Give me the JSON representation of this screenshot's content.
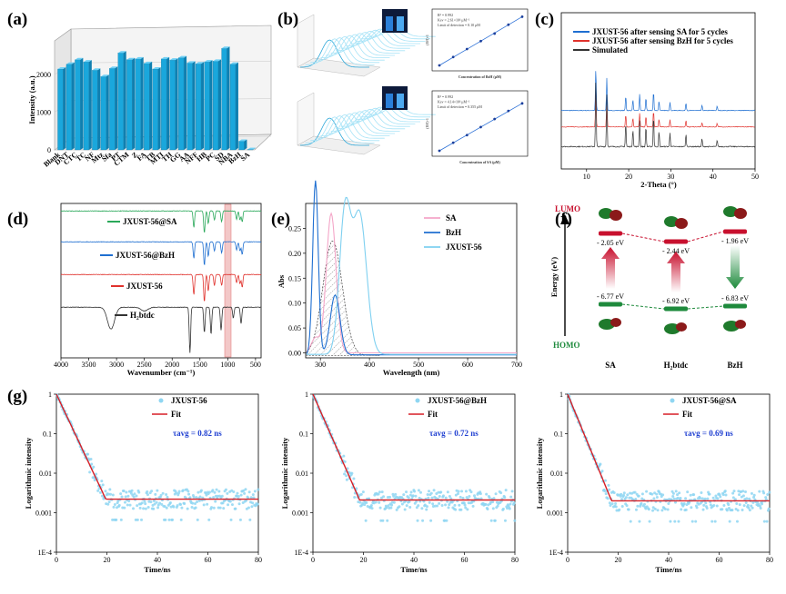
{
  "panels": {
    "a": "(a)",
    "b": "(b)",
    "c": "(c)",
    "d": "(d)",
    "e": "(e)",
    "f": "(f)",
    "g": "(g)"
  },
  "colors": {
    "bar": "#1aa7dc",
    "blue": "#1f6fd1",
    "red": "#e0322d",
    "dark": "#333333",
    "green": "#2aa85a",
    "pink": "#f4a6c8",
    "lightblue": "#7fd0f0",
    "scatter": "#8fd6f2",
    "fit": "#d71f26"
  },
  "chart_data": [
    {
      "id": "a",
      "type": "bar",
      "title": "",
      "ylabel": "Intensity (a.u.)",
      "yticks": [
        "0",
        "1000",
        "2000"
      ],
      "ylim": [
        0,
        2900
      ],
      "categories": [
        "Blank",
        "DNT",
        "CTC",
        "TC",
        "NF",
        "Mtz",
        "Sfa",
        "PT",
        "CTM",
        "Z",
        "FA",
        "TB",
        "MTI",
        "TH",
        "GG",
        "AA",
        "NFF",
        "HB",
        "PC",
        "SD",
        "NBA",
        "BzH",
        "SA"
      ],
      "values": [
        2150,
        2280,
        2400,
        2340,
        2120,
        1950,
        2170,
        2580,
        2400,
        2420,
        2300,
        2150,
        2420,
        2390,
        2450,
        2310,
        2290,
        2340,
        2360,
        2700,
        2280,
        230,
        10
      ]
    },
    {
      "id": "b-top-right",
      "type": "scatter",
      "xlabel": "Concentration of BzH (μM)",
      "ylabel": "(I0/I)-1",
      "annotations": [
        "R² = 0.992",
        "Ksv = 2.61×10⁴ μM⁻¹",
        "Limit of detection = 0.10 μM"
      ],
      "x": [
        0,
        100,
        200,
        300,
        400,
        500,
        600
      ],
      "y": [
        0.0,
        0.19,
        0.37,
        0.55,
        0.72,
        0.92,
        1.1
      ]
    },
    {
      "id": "b-bottom-right",
      "type": "scatter",
      "xlabel": "Concentration of SA (μM)",
      "ylabel": "(I0/I)-1",
      "annotations": [
        "R² = 0.992",
        "Ksv = 4.14×10⁴ μM⁻¹",
        "Limit of detection = 0.355 μM"
      ],
      "x": [
        0,
        25,
        50,
        75,
        100,
        125,
        150
      ],
      "y": [
        0.0,
        0.17,
        0.33,
        0.5,
        0.67,
        0.84,
        1.0
      ]
    },
    {
      "id": "c",
      "type": "line",
      "xlabel": "2-Theta (°)",
      "xticks": [
        "10",
        "20",
        "30",
        "40",
        "50"
      ],
      "xlim": [
        4,
        50
      ],
      "series": [
        {
          "name": "JXUST-56 after sensing SA for 5 cycles",
          "color": "blue"
        },
        {
          "name": "JXUST-56 after sensing BzH for 5 cycles",
          "color": "red"
        },
        {
          "name": "Simulated",
          "color": "dark"
        }
      ],
      "peaks": [
        {
          "x": 12.2,
          "h": 1.0
        },
        {
          "x": 14.8,
          "h": 0.75
        },
        {
          "x": 19.3,
          "h": 0.35
        },
        {
          "x": 21.0,
          "h": 0.25
        },
        {
          "x": 22.6,
          "h": 0.38
        },
        {
          "x": 24.1,
          "h": 0.3
        },
        {
          "x": 25.9,
          "h": 0.45
        },
        {
          "x": 27.2,
          "h": 0.22
        },
        {
          "x": 29.8,
          "h": 0.2
        },
        {
          "x": 33.6,
          "h": 0.18
        },
        {
          "x": 37.4,
          "h": 0.12
        },
        {
          "x": 41.0,
          "h": 0.1
        }
      ]
    },
    {
      "id": "d",
      "type": "line",
      "xlabel": "Wavenumber (cm⁻¹)",
      "xticks": [
        "4000",
        "3500",
        "3000",
        "2500",
        "2000",
        "1500",
        "1000",
        "500"
      ],
      "xlim": [
        4000,
        400
      ],
      "series": [
        {
          "name": "JXUST-56@SA",
          "color": "green"
        },
        {
          "name": "JXUST-56@BzH",
          "color": "blue"
        },
        {
          "name": "JXUST-56",
          "color": "red"
        },
        {
          "name": "H₂btdc",
          "color": "dark"
        }
      ]
    },
    {
      "id": "e",
      "type": "line",
      "xlabel": "Wavelength (nm)",
      "ylabel": "Abs",
      "xticks": [
        "300",
        "400",
        "500",
        "600",
        "700"
      ],
      "yticks": [
        "0.00",
        "0.05",
        "0.10",
        "0.15",
        "0.20",
        "0.25"
      ],
      "xlim": [
        270,
        700
      ],
      "ylim": [
        -0.01,
        0.3
      ],
      "series": [
        {
          "name": "SA",
          "color": "pink"
        },
        {
          "name": "BzH",
          "color": "blue"
        },
        {
          "name": "JXUST-56",
          "color": "lightblue"
        }
      ]
    },
    {
      "id": "f",
      "type": "diagram",
      "ylabel": "Energy (eV)",
      "top_label": "LUMO",
      "bottom_label": "HOMO",
      "categories": [
        "SA",
        "H₂btdc",
        "BzH"
      ],
      "lumo": [
        "- 2.05 eV",
        "- 2.44 eV",
        "- 1.96 eV"
      ],
      "homo": [
        "- 6.77 eV",
        "- 6.92 eV",
        "- 6.83 eV"
      ]
    },
    {
      "id": "g",
      "type": "scatter",
      "panels": [
        {
          "series": "JXUST-56",
          "tau": "τavg = 0.82 ns"
        },
        {
          "series": "JXUST-56@BzH",
          "tau": "τavg = 0.72 ns"
        },
        {
          "series": "JXUST-56@SA",
          "tau": "τavg = 0.69 ns"
        }
      ],
      "fit_label": "Fit",
      "xlabel": "Time/ns",
      "ylabel": "Logarithmic intensity",
      "xticks": [
        "0",
        "20",
        "40",
        "60",
        "80"
      ],
      "yticks": [
        "1",
        "0.1",
        "0.01",
        "0.001",
        "1E-4"
      ],
      "xlim": [
        0,
        80
      ],
      "tau_ns": [
        0.82,
        0.72,
        0.69
      ]
    }
  ]
}
